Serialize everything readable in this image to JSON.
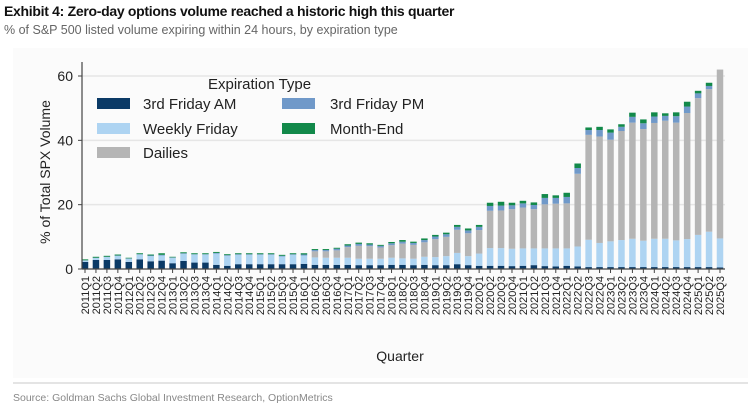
{
  "title": "Exhibit 4: Zero-day options volume reached a historic high this quarter",
  "subtitle": "% of S&P 500 listed volume expiring within 24 hours, by expiration type",
  "source": "Source: Goldman Sachs Global Investment Research, OptionMetrics",
  "chart_data": {
    "type": "bar",
    "stacked": true,
    "xlabel": "Quarter",
    "ylabel": "% of Total SPX Volume",
    "ylim": [
      0,
      62
    ],
    "yticks": [
      0,
      20,
      40,
      60
    ],
    "grid": true,
    "legend_title": "Expiration Type",
    "legend_placement": "top-left",
    "categories": [
      "2011Q1",
      "2011Q2",
      "2011Q3",
      "2011Q4",
      "2012Q1",
      "2012Q2",
      "2012Q3",
      "2012Q4",
      "2013Q1",
      "2013Q2",
      "2013Q3",
      "2013Q4",
      "2014Q1",
      "2014Q2",
      "2014Q3",
      "2014Q4",
      "2015Q1",
      "2015Q2",
      "2015Q3",
      "2015Q4",
      "2016Q1",
      "2016Q2",
      "2016Q3",
      "2016Q4",
      "2017Q1",
      "2017Q2",
      "2017Q3",
      "2017Q4",
      "2018Q1",
      "2018Q2",
      "2018Q3",
      "2018Q4",
      "2019Q1",
      "2019Q2",
      "2019Q3",
      "2019Q4",
      "2020Q1",
      "2020Q2",
      "2020Q3",
      "2020Q4",
      "2021Q1",
      "2021Q2",
      "2021Q3",
      "2021Q4",
      "2022Q1",
      "2022Q2",
      "2022Q3",
      "2022Q4",
      "2023Q1",
      "2023Q2",
      "2023Q3",
      "2023Q4",
      "2024Q1",
      "2024Q2",
      "2024Q3",
      "2024Q4",
      "2025Q1",
      "2025Q2",
      "2025Q3"
    ],
    "series": [
      {
        "name": "3rd Friday AM",
        "color": "#0b3a66",
        "values": [
          2.2,
          2.8,
          2.8,
          3.0,
          2.2,
          3.0,
          2.4,
          2.6,
          1.8,
          2.5,
          2.0,
          2.0,
          1.3,
          1.0,
          1.5,
          1.5,
          1.5,
          1.5,
          1.5,
          1.5,
          1.6,
          1.3,
          1.3,
          1.3,
          1.3,
          1.2,
          1.2,
          1.2,
          1.3,
          1.3,
          1.2,
          1.3,
          1.2,
          1.2,
          1.5,
          1.2,
          1.0,
          1.0,
          1.0,
          0.9,
          1.0,
          1.2,
          0.9,
          0.8,
          1.0,
          0.8,
          0.6,
          0.6,
          0.6,
          0.6,
          0.6,
          0.6,
          0.6,
          0.6,
          0.6,
          0.6,
          0.6,
          0.6,
          0.5
        ]
      },
      {
        "name": "Weekly Friday",
        "color": "#aed4f2",
        "values": [
          0.4,
          0.6,
          0.9,
          1.1,
          1.0,
          1.5,
          1.6,
          1.6,
          1.7,
          2.2,
          2.5,
          2.5,
          3.5,
          3.1,
          2.9,
          2.9,
          2.9,
          2.9,
          2.4,
          2.9,
          2.6,
          2.3,
          2.2,
          2.2,
          2.2,
          2.0,
          2.0,
          2.0,
          2.2,
          2.0,
          2.0,
          2.5,
          2.5,
          2.8,
          3.5,
          2.8,
          3.8,
          5.5,
          5.5,
          5.4,
          5.4,
          5.2,
          5.5,
          5.6,
          5.4,
          6.2,
          8.5,
          7.5,
          8.0,
          8.4,
          8.8,
          8.2,
          8.8,
          8.8,
          8.3,
          8.7,
          10.0,
          11.0,
          9.0
        ]
      },
      {
        "name": "Dailies",
        "color": "#b5b5b5",
        "values": [
          0,
          0,
          0,
          0,
          0,
          0,
          0,
          0,
          0,
          0,
          0,
          0,
          0,
          0,
          0,
          0,
          0,
          0,
          0,
          0,
          0,
          1.9,
          2.0,
          2.3,
          3.3,
          4.0,
          3.9,
          3.5,
          3.9,
          4.6,
          4.3,
          4.5,
          5.6,
          6.0,
          7.2,
          7.1,
          7.3,
          11.6,
          11.7,
          12.3,
          12.7,
          12.2,
          13.7,
          13.9,
          14.0,
          22.6,
          32.6,
          33.1,
          31.6,
          33.9,
          36.1,
          34.7,
          36.0,
          36.7,
          36.6,
          39.2,
          42.5,
          44.3,
          52.5
        ]
      },
      {
        "name": "3rd Friday PM",
        "color": "#7099c9",
        "values": [
          0.1,
          0.1,
          0.1,
          0.1,
          0.1,
          0.1,
          0.2,
          0.2,
          0.1,
          0.2,
          0.1,
          0.1,
          0.2,
          0.2,
          0.2,
          0.2,
          0.2,
          0.2,
          0.2,
          0.2,
          0.3,
          0.4,
          0.4,
          0.5,
          0.5,
          0.6,
          0.5,
          0.5,
          0.6,
          0.6,
          0.6,
          0.7,
          0.8,
          0.8,
          0.9,
          0.9,
          1.0,
          1.5,
          1.5,
          1.2,
          1.3,
          1.3,
          2.0,
          1.8,
          2.0,
          1.8,
          1.5,
          2.0,
          2.2,
          1.3,
          1.8,
          1.8,
          2.0,
          1.5,
          2.0,
          2.0,
          1.5,
          1.0,
          0
        ]
      },
      {
        "name": "Month-End",
        "color": "#12894a",
        "values": [
          0.3,
          0.3,
          0.3,
          0.3,
          0.2,
          0.3,
          0.3,
          0.5,
          0.2,
          0.3,
          0.3,
          0.3,
          0.3,
          0.3,
          0.3,
          0.3,
          0.3,
          0.3,
          0.3,
          0.3,
          0.4,
          0.3,
          0.3,
          0.3,
          0.4,
          0.4,
          0.4,
          0.3,
          0.4,
          0.5,
          0.4,
          0.5,
          0.5,
          0.5,
          0.6,
          0.6,
          0.6,
          1.0,
          1.2,
          0.8,
          0.8,
          0.8,
          1.2,
          0.8,
          1.3,
          1.4,
          0.8,
          1.0,
          1.0,
          0.8,
          1.3,
          1.2,
          1.3,
          0.8,
          1.2,
          1.5,
          0.8,
          1.0,
          0
        ]
      }
    ],
    "legend_order": [
      "3rd Friday AM",
      "3rd Friday PM",
      "Weekly Friday",
      "Month-End",
      "Dailies"
    ]
  }
}
